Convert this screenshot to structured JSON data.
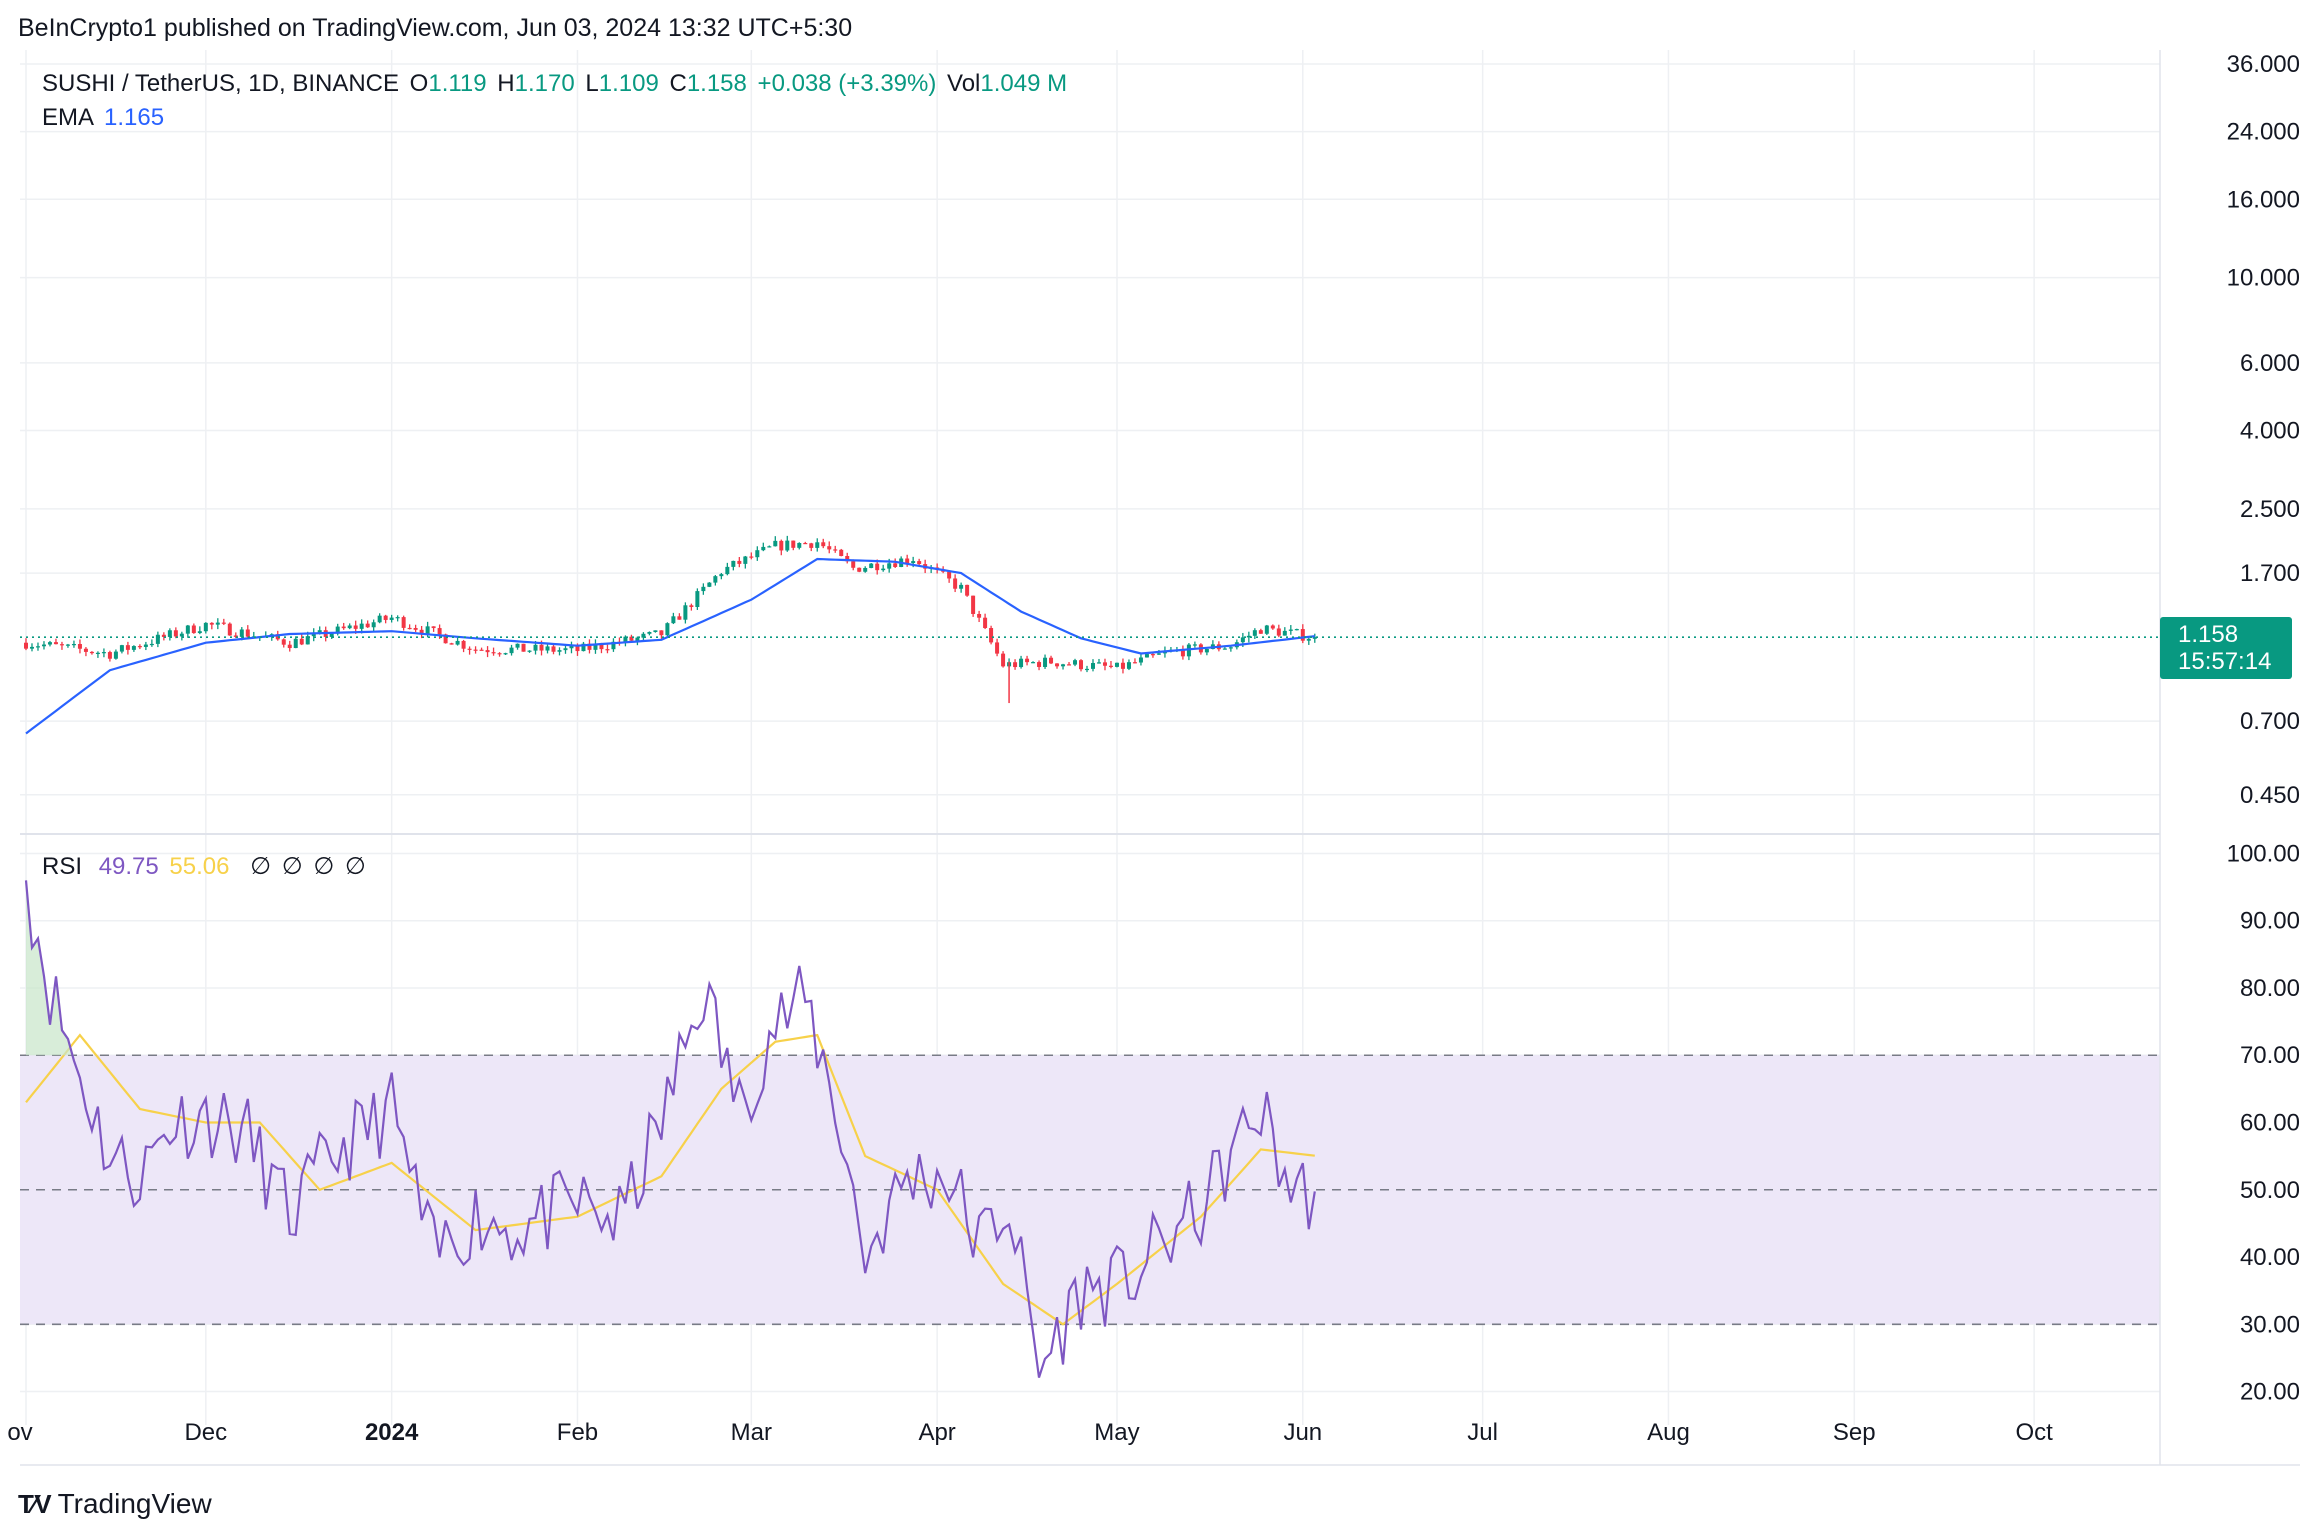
{
  "publisher_line": "BeInCrypto1 published on TradingView.com, Jun 03, 2024 13:32 UTC+5:30",
  "legend": {
    "symbol": "SUSHI / TetherUS, 1D, BINANCE",
    "open_label": "O",
    "open": "1.119",
    "high_label": "H",
    "high": "1.170",
    "low_label": "L",
    "low": "1.109",
    "close_label": "C",
    "close": "1.158",
    "change": "+0.038 (+3.39%)",
    "vol_label": "Vol",
    "vol": "1.049 M",
    "ema_label": "EMA",
    "ema": "1.165",
    "rsi_label": "RSI",
    "rsi": "49.75",
    "rsi_ma": "55.06",
    "rsi_extra": [
      "∅",
      "∅",
      "∅",
      "∅"
    ]
  },
  "price_tag": {
    "price": "1.158",
    "countdown": "15:57:14"
  },
  "brand": "TradingView",
  "colors": {
    "up": "#089981",
    "down": "#f23645",
    "ema": "#2962ff",
    "rsi": "#7e57c2",
    "rsi_ma": "#f7d14a",
    "rsi_band": "#ede7f8",
    "grid": "#eef0f3"
  },
  "chart_data": {
    "type": "line",
    "x_axis_labels": [
      "ov",
      "Dec",
      "2024",
      "Feb",
      "Mar",
      "Apr",
      "May",
      "Jun",
      "Jul",
      "Aug",
      "Sep",
      "Oct"
    ],
    "price_axis": {
      "scale": "log",
      "ticks": [
        "36.000",
        "24.000",
        "16.000",
        "10.000",
        "6.000",
        "4.000",
        "2.500",
        "1.700",
        "1.158",
        "0.700",
        "0.450"
      ],
      "tick_values": [
        36,
        24,
        16,
        10,
        6,
        4,
        2.5,
        1.7,
        1.158,
        0.7,
        0.45
      ],
      "range": [
        0.36,
        38
      ]
    },
    "rsi_axis": {
      "ticks": [
        "100.00",
        "90.00",
        "80.00",
        "70.00",
        "60.00",
        "50.00",
        "40.00",
        "30.00",
        "20.00"
      ],
      "tick_values": [
        100,
        90,
        80,
        70,
        60,
        50,
        40,
        30,
        20
      ],
      "range": [
        18,
        102
      ],
      "bands": [
        30,
        50,
        70
      ]
    },
    "price_series": {
      "name": "SUSHI / TetherUS",
      "dates": [
        "2023-11-01",
        "2023-11-15",
        "2023-12-01",
        "2023-12-15",
        "2024-01-01",
        "2024-01-15",
        "2024-02-01",
        "2024-02-15",
        "2024-02-25",
        "2024-03-05",
        "2024-03-12",
        "2024-03-18",
        "2024-03-28",
        "2024-04-05",
        "2024-04-12",
        "2024-04-20",
        "2024-05-01",
        "2024-05-10",
        "2024-05-20",
        "2024-05-25",
        "2024-06-03"
      ],
      "close": [
        1.12,
        1.05,
        1.25,
        1.12,
        1.3,
        1.08,
        1.07,
        1.18,
        1.72,
        2.0,
        2.05,
        1.75,
        1.86,
        1.55,
        0.98,
        1.0,
        0.96,
        1.06,
        1.1,
        1.22,
        1.158
      ]
    },
    "ema_series": {
      "name": "EMA",
      "dates": [
        "2023-11-01",
        "2023-11-15",
        "2023-12-01",
        "2023-12-15",
        "2024-01-01",
        "2024-01-15",
        "2024-02-01",
        "2024-02-15",
        "2024-03-01",
        "2024-03-12",
        "2024-03-25",
        "2024-04-05",
        "2024-04-15",
        "2024-04-25",
        "2024-05-05",
        "2024-05-20",
        "2024-06-03"
      ],
      "values": [
        0.65,
        0.95,
        1.12,
        1.18,
        1.2,
        1.15,
        1.1,
        1.14,
        1.45,
        1.85,
        1.82,
        1.7,
        1.35,
        1.15,
        1.05,
        1.1,
        1.165
      ]
    },
    "rsi_series": {
      "name": "RSI",
      "dates": [
        "2023-11-01",
        "2023-11-05",
        "2023-11-10",
        "2023-11-15",
        "2023-11-20",
        "2023-11-25",
        "2023-12-01",
        "2023-12-08",
        "2023-12-15",
        "2023-12-22",
        "2024-01-01",
        "2024-01-08",
        "2024-01-15",
        "2024-01-22",
        "2024-02-01",
        "2024-02-08",
        "2024-02-15",
        "2024-02-22",
        "2024-02-28",
        "2024-03-05",
        "2024-03-10",
        "2024-03-15",
        "2024-03-20",
        "2024-03-27",
        "2024-04-03",
        "2024-04-08",
        "2024-04-13",
        "2024-04-18",
        "2024-04-25",
        "2024-05-02",
        "2024-05-10",
        "2024-05-15",
        "2024-05-20",
        "2024-05-25",
        "2024-05-30",
        "2024-06-03"
      ],
      "values": [
        96,
        80,
        67,
        55,
        52,
        60,
        61,
        58,
        46,
        55,
        62,
        40,
        46,
        44,
        48,
        45,
        60,
        80,
        62,
        75,
        78,
        63,
        40,
        52,
        52,
        42,
        48,
        23,
        35,
        36,
        43,
        47,
        55,
        62,
        50,
        49.75
      ]
    },
    "rsi_ma_series": {
      "name": "RSI-based MA",
      "dates": [
        "2023-11-01",
        "2023-11-10",
        "2023-11-20",
        "2023-12-01",
        "2023-12-10",
        "2023-12-20",
        "2024-01-01",
        "2024-01-15",
        "2024-02-01",
        "2024-02-15",
        "2024-02-25",
        "2024-03-05",
        "2024-03-12",
        "2024-03-20",
        "2024-04-01",
        "2024-04-12",
        "2024-04-22",
        "2024-05-01",
        "2024-05-15",
        "2024-05-25",
        "2024-06-03"
      ],
      "values": [
        63,
        73,
        62,
        60,
        60,
        50,
        54,
        44,
        46,
        52,
        65,
        72,
        73,
        55,
        50,
        36,
        30,
        36,
        46,
        56,
        55.06
      ]
    }
  }
}
